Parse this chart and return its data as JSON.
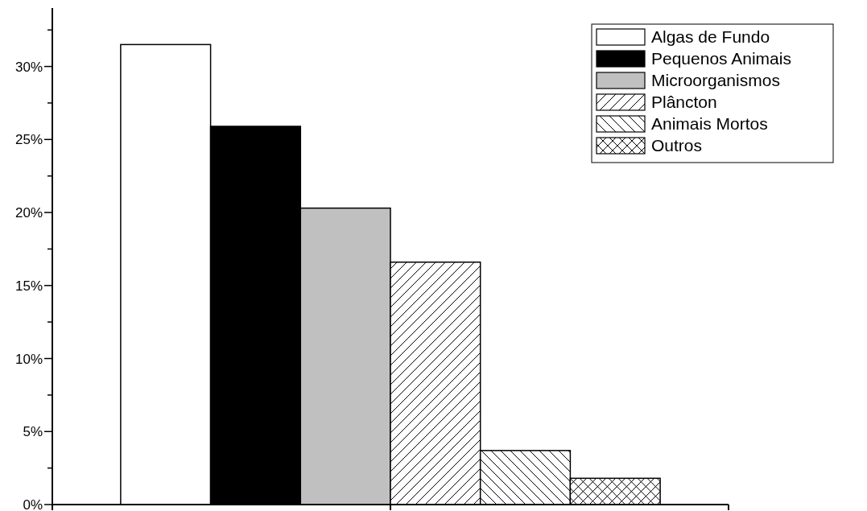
{
  "chart_data": {
    "type": "bar",
    "categories": [
      null,
      null,
      null,
      null,
      null,
      null
    ],
    "series": [
      {
        "name": "Algas de Fundo",
        "color": "#ffffff",
        "values": [
          31.5,
          null,
          null,
          null,
          null,
          null
        ]
      },
      {
        "name": "Pequenos Animais",
        "color": "#000000",
        "values": [
          null,
          25.9,
          null,
          null,
          null,
          null
        ]
      },
      {
        "name": "Microorganismos",
        "color": "#c0c0c0",
        "values": [
          null,
          null,
          20.3,
          null,
          null,
          null
        ]
      },
      {
        "name": "Plâncton",
        "color": "#ffffff",
        "values": [
          null,
          null,
          null,
          16.6,
          null,
          null
        ]
      },
      {
        "name": "Animais Mortos",
        "color": "#ffffff",
        "values": [
          null,
          null,
          null,
          null,
          3.7,
          null
        ]
      },
      {
        "name": "Outros",
        "color": "#ffffff",
        "values": [
          null,
          null,
          null,
          null,
          null,
          1.8
        ]
      }
    ],
    "ylim": [
      0,
      34
    ],
    "yticks": [
      {
        "value": 0,
        "label": "0%"
      },
      {
        "value": 2.5,
        "label": null
      },
      {
        "value": 5,
        "label": "5%"
      },
      {
        "value": 7.5,
        "label": null
      },
      {
        "value": 10,
        "label": "10%"
      },
      {
        "value": 12.5,
        "label": null
      },
      {
        "value": 15,
        "label": "15%"
      },
      {
        "value": 17.5,
        "label": null
      },
      {
        "value": 20,
        "label": "20%"
      },
      {
        "value": 22.5,
        "label": null
      },
      {
        "value": 25,
        "label": "25%"
      },
      {
        "value": 27.5,
        "label": null
      },
      {
        "value": 30,
        "label": "30%"
      },
      {
        "value": 32.5,
        "label": null
      }
    ],
    "tick_labels": "y",
    "legend": "top right",
    "grid": false
  }
}
